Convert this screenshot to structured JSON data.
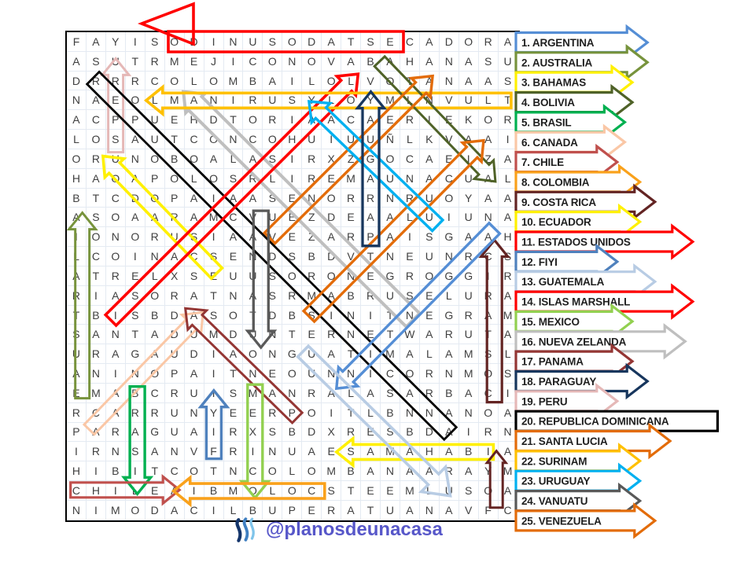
{
  "page": {
    "background": "#FFFFFF",
    "type": "word-search-puzzle"
  },
  "grid": {
    "columns": 23,
    "rows_count": 25,
    "letter_color": "#404040",
    "rows": [
      "FAYISODINUSODATSECADORA",
      "ASUTRMEJICONOVABAHANASU",
      "DRRRCOLOMBAILOLVOTANAAS",
      "NAEOLMANIRUSYLOYMLNVULT",
      "ACPPUEHDTORIAACAERIEKOR",
      "LOSAUTCONCOHUIUUÑLKVAAI",
      "ORUNOBOALASIRXZGOCAEIZA",
      "HAOAPOLOSRLIREMAUNACUAL",
      "BTCDOPAIAASENORRNRUOYAA",
      "ASOAARAMCVUEZDEAALUIUNA",
      "IONORUSIAAVEZARPAISGAAH",
      "LCOINACSENDSBDVTNEUNRCS",
      "ATRELXSEUUSORONEGROGGIR",
      "RIASORATNASRMABRUSELURA",
      "TBISBDASOTDBSINITNEGRAM",
      "SANTADUMDUNTERNETWARUTA",
      "URAGAUDIAONGUATIMALAMSL",
      "ANINOPAITNEOUNNICORNMOS",
      "EMABCRUISMANRALASARBACI",
      "RCARRUNYEERPOITLBNNANOA",
      "PARAGUAIRXSBDXRESBDAIRN",
      "IRNSANVFRINUAESAMAHABIA",
      "HIBITCOTNCOLOMBANAARAYM",
      "CHILEAIBMOLOCSTEEMLUSOA",
      "NIMODACILBUPERATUANAVFC"
    ]
  },
  "word_list": [
    {
      "num": 1,
      "name": "ARGENTINA",
      "color": "#558ED5",
      "head": true
    },
    {
      "num": 2,
      "name": "AUSTRALIA",
      "color": "#77933C",
      "head": true
    },
    {
      "num": 3,
      "name": "BAHAMAS",
      "color": "#FFF000",
      "head": true
    },
    {
      "num": 4,
      "name": "BOLIVIA",
      "color": "#4F6228",
      "head": true
    },
    {
      "num": 5,
      "name": "BRASIL",
      "color": "#00B050",
      "head": true
    },
    {
      "num": 6,
      "name": "CANADA",
      "color": "#FAC7A6",
      "head": true
    },
    {
      "num": 7,
      "name": "CHILE",
      "color": "#C0504D",
      "head": true
    },
    {
      "num": 8,
      "name": "COLOMBIA",
      "color": "#F9A11B",
      "head": true
    },
    {
      "num": 9,
      "name": "COSTA RICA",
      "color": "#632423",
      "head": true
    },
    {
      "num": 10,
      "name": "ECUADOR",
      "color": "#FFF000",
      "head": true
    },
    {
      "num": 11,
      "name": "ESTADOS UNIDOS",
      "color": "#FF0000",
      "head": true
    },
    {
      "num": 12,
      "name": "FIYI",
      "color": "#4F81BD",
      "head": true
    },
    {
      "num": 13,
      "name": "GUATEMALA",
      "color": "#B8CCE4",
      "head": true
    },
    {
      "num": 14,
      "name": "ISLAS MARSHALL",
      "color": "#FF0000",
      "head": true
    },
    {
      "num": 15,
      "name": "MEXICO",
      "color": "#92D050",
      "head": true
    },
    {
      "num": 16,
      "name": "NUEVA ZELANDA",
      "color": "#BFBFBF",
      "head": true
    },
    {
      "num": 17,
      "name": "PANAMA",
      "color": "#943634",
      "head": true
    },
    {
      "num": 18,
      "name": "PARAGUAY",
      "color": "#17365D",
      "head": true
    },
    {
      "num": 19,
      "name": "PERU",
      "color": "#E5B8B7",
      "head": true
    },
    {
      "num": 20,
      "name": "REPUBLICA DOMINICANA",
      "color": "#000000",
      "head": false
    },
    {
      "num": 21,
      "name": "SANTA LUCIA",
      "color": "#E36C0A",
      "head": true
    },
    {
      "num": 22,
      "name": "SURINAM",
      "color": "#FFC000",
      "head": true
    },
    {
      "num": 23,
      "name": "URUGUAY",
      "color": "#00B0F0",
      "head": true
    },
    {
      "num": 24,
      "name": "VANUATU",
      "color": "#595959",
      "head": true
    },
    {
      "num": 25,
      "name": "VENEZUELA",
      "color": "#E36C0A",
      "head": true
    }
  ],
  "found_word_arrows": [
    {
      "word": "ESTADOS UNIDOS",
      "color": "#FF0000",
      "type": "top-banner"
    },
    {
      "word": "PERU",
      "color": "#E5B8B7",
      "from": [
        3.05,
        6.7
      ],
      "to": [
        3.05,
        1.9
      ],
      "sw": 3
    },
    {
      "word": "REPUBLICA DOMINICANA",
      "color": "#000000",
      "from": [
        1.9,
        2.9
      ],
      "to": [
        20.1,
        21.1
      ],
      "head": false,
      "hw": 11,
      "sw": 2.8
    },
    {
      "word": "NUEVA ZELANDA",
      "color": "#BFBFBF",
      "from": [
        18.2,
        15.3
      ],
      "to": [
        6.5,
        3.6
      ],
      "hw": 12,
      "sw": 4
    },
    {
      "word": "ECUADOR",
      "color": "#FFF000",
      "from": [
        8.2,
        12.9
      ],
      "to": [
        2.4,
        6.9
      ],
      "sw": 3.6
    },
    {
      "word": "ISLAS MARSHALL",
      "color": "#FF0000",
      "from": [
        2.8,
        15.3
      ],
      "to": [
        15.4,
        2.7
      ],
      "sw": 3.6
    },
    {
      "word": "CANADA",
      "color": "#FAC7A6",
      "from": [
        1.7,
        20.9
      ],
      "to": [
        7.5,
        14.9
      ],
      "hw": 9,
      "sw": 3
    },
    {
      "word": "PANAMA",
      "color": "#943634",
      "from": [
        12.3,
        20.3
      ],
      "to": [
        6.6,
        14.7
      ],
      "hw": 9,
      "sw": 3
    },
    {
      "word": "AUSTRALIA",
      "color": "#77933C",
      "from": [
        1.35,
        19.3
      ],
      "to": [
        1.35,
        9.8
      ],
      "hw": 9,
      "sw": 3
    },
    {
      "word": "SURINAM",
      "color": "#FFC000",
      "from": [
        23.2,
        4.05
      ],
      "to": [
        4.6,
        4.05
      ],
      "sw": 3.6
    },
    {
      "word": "BOLIVIA",
      "color": "#4F6228",
      "from": [
        16.5,
        2.05
      ],
      "to": [
        22.4,
        8.2
      ],
      "hw": 9,
      "sw": 3
    },
    {
      "word": "VENEZUELA",
      "color": "#E36C0A",
      "from": [
        10.9,
        11.1
      ],
      "to": [
        19.2,
        2.8
      ],
      "sw": 3.4
    },
    {
      "word": "SANTA LUCIA",
      "color": "#E36C0A",
      "from": [
        12.9,
        15.1
      ],
      "to": [
        21.8,
        6.1
      ],
      "sw": 3.4
    },
    {
      "word": "URUGUAY",
      "color": "#00B0F0",
      "from": [
        19.45,
        10.45
      ],
      "to": [
        12.9,
        4.1
      ],
      "sw": 3.4
    },
    {
      "word": "PARAGUAY",
      "color": "#17365D",
      "from": [
        16.05,
        11.5
      ],
      "to": [
        16.05,
        3.6
      ],
      "hw": 10.5,
      "sw": 3.3
    },
    {
      "word": "VANUATU",
      "color": "#595959",
      "from": [
        10.45,
        9.7
      ],
      "to": [
        10.45,
        16.7
      ],
      "sw": 3.3
    },
    {
      "word": "COSTA RICA",
      "color": "#632423",
      "from": [
        22.35,
        19.5
      ],
      "to": [
        22.35,
        11.2
      ],
      "sw": 3.2
    },
    {
      "word": "ARGENTINA",
      "color": "#558ED5",
      "from": [
        22.35,
        10.6
      ],
      "to": [
        14.3,
        18.8
      ],
      "sw": 3.4
    },
    {
      "word": "MEXICO",
      "color": "#92D050",
      "from": [
        10.15,
        18.6
      ],
      "to": [
        10.15,
        24.4
      ],
      "sw": 3.4
    },
    {
      "word": "FIYI",
      "color": "#4F81BD",
      "from": [
        8.05,
        22.4
      ],
      "to": [
        8.05,
        18.9
      ],
      "sw": 3.4
    },
    {
      "word": "BRASIL",
      "color": "#00B050",
      "from": [
        4.15,
        18.7
      ],
      "to": [
        4.15,
        24.2
      ],
      "sw": 3.4
    },
    {
      "word": "BAHAMAS",
      "color": "#FFF000",
      "from": [
        22.3,
        22.05
      ],
      "to": [
        14.3,
        22.05
      ],
      "sw": 3.6
    },
    {
      "word": "CHILE",
      "color": "#C0504D",
      "from": [
        0.75,
        24.0
      ],
      "to": [
        6.3,
        24.0
      ],
      "sw": 3.2
    },
    {
      "word": "COLOMBIA",
      "color": "#F9A11B",
      "from": [
        13.7,
        24.05
      ],
      "to": [
        6.0,
        24.05
      ],
      "sw": 3.6
    },
    {
      "word": "GUATEMALA",
      "color": "#B8CCE4",
      "from": [
        12.6,
        16.9
      ],
      "to": [
        20.1,
        24.3
      ],
      "sw": 3.6,
      "hl": 30,
      "hhw": 22
    },
    {
      "word": "EXTRA-MARK",
      "color": "#632423",
      "from": [
        22.45,
        24.9
      ],
      "to": [
        22.45,
        22.0
      ],
      "hw": 8,
      "hl": 15,
      "hhw": 12,
      "sw": 3
    }
  ],
  "watermark": {
    "handle": "@planosdeunacasa",
    "text_color": "#5757c9",
    "logo_colors": [
      "#14356b",
      "#3f7fc1",
      "#7fc4ea"
    ]
  }
}
